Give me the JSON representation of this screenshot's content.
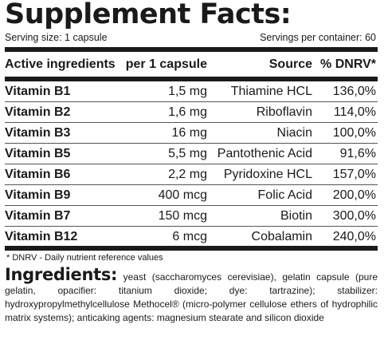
{
  "panel": {
    "title": "Supplement Facts:",
    "serving_size": "Serving size: 1 capsule",
    "servings_per_container": "Servings per container: 60"
  },
  "table": {
    "headers": [
      "Active ingredients",
      "per 1 capsule",
      "Source",
      "% DNRV*"
    ],
    "rows": [
      [
        "Vitamin B1",
        "1,5 mg",
        "Thiamine HCL",
        "136,0%"
      ],
      [
        "Vitamin B2",
        "1,6 mg",
        "Riboflavin",
        "114,0%"
      ],
      [
        "Vitamin B3",
        "16 mg",
        "Niacin",
        "100,0%"
      ],
      [
        "Vitamin B5",
        "5,5 mg",
        "Pantothenic Acid",
        "91,6%"
      ],
      [
        "Vitamin B6",
        "2,2 mg",
        "Pyridoxine HCL",
        "157,0%"
      ],
      [
        "Vitamin B9",
        "400 mcg",
        "Folic Acid",
        "200,0%"
      ],
      [
        "Vitamin B7",
        "150 mcg",
        "Biotin",
        "300,0%"
      ],
      [
        "Vitamin B12",
        "6 mcg",
        "Cobalamin",
        "240,0%"
      ]
    ]
  },
  "footnote": "* DNRV - Daily nutrient reference values",
  "ingredients": {
    "label": "Ingredients:",
    "text": " yeast (saccharomyces cerevisiae), gelatin capsule (pure gelatin, opacifier: titanium dioxide; dye: tartrazine); stabilizer: hydroxypropylmethylcellulose Methocel® (micro-polymer cellulose ethers of hydrophilic matrix systems); anticaking agents: magnesium stearate and silicon dioxide"
  }
}
